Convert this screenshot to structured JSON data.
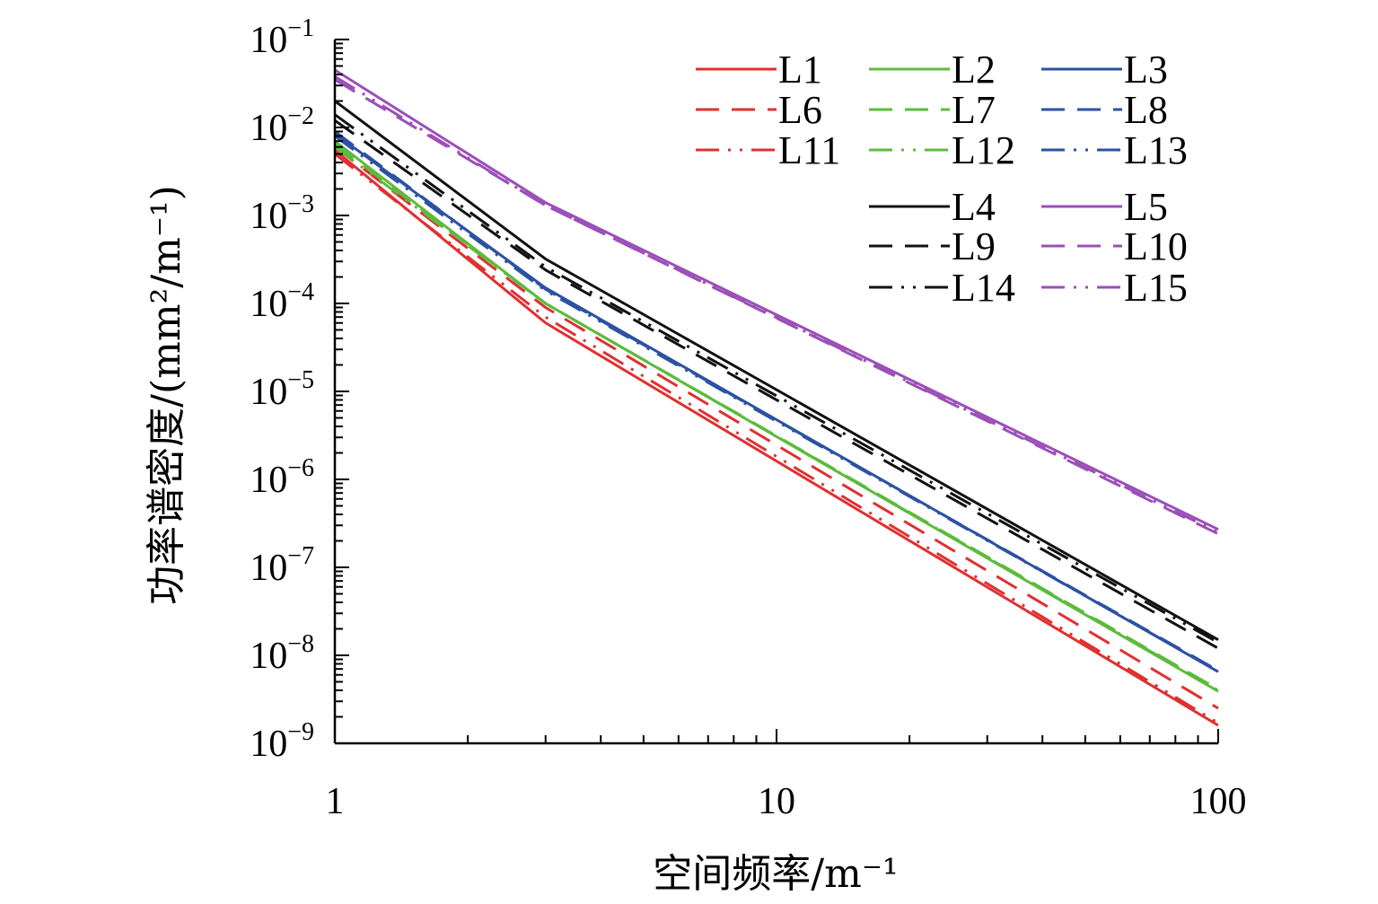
{
  "chart_data": {
    "type": "line",
    "xscale": "log",
    "yscale": "log",
    "xlim": [
      1,
      100
    ],
    "ylim": [
      1e-09,
      0.1
    ],
    "xlabel": "空间频率/m⁻¹",
    "ylabel": "功率谱密度/(mm²/m⁻¹)",
    "x_ticks": [
      {
        "value": 1,
        "label": "1"
      },
      {
        "value": 10,
        "label": "10"
      },
      {
        "value": 100,
        "label": "100"
      }
    ],
    "y_ticks": [
      {
        "value": 0.1,
        "base": "10",
        "exp": "−1"
      },
      {
        "value": 0.01,
        "base": "10",
        "exp": "−2"
      },
      {
        "value": 0.001,
        "base": "10",
        "exp": "−3"
      },
      {
        "value": 0.0001,
        "base": "10",
        "exp": "−4"
      },
      {
        "value": 1e-05,
        "base": "10",
        "exp": "−5"
      },
      {
        "value": 1e-06,
        "base": "10",
        "exp": "−6"
      },
      {
        "value": 1e-07,
        "base": "10",
        "exp": "−7"
      },
      {
        "value": 1e-08,
        "base": "10",
        "exp": "−8"
      },
      {
        "value": 1e-09,
        "base": "10",
        "exp": "−9"
      }
    ],
    "grid": false,
    "legend_position": "top-right",
    "series": [
      {
        "name": "L1",
        "color": "#e03030",
        "dash": "solid",
        "points": [
          [
            1,
            0.0055
          ],
          [
            3,
            6e-05
          ],
          [
            100,
            1.6e-09
          ]
        ]
      },
      {
        "name": "L2",
        "color": "#5cbb3c",
        "dash": "solid",
        "points": [
          [
            1,
            0.007
          ],
          [
            3,
            0.0001
          ],
          [
            100,
            3.9e-09
          ]
        ]
      },
      {
        "name": "L3",
        "color": "#2b52a3",
        "dash": "solid",
        "points": [
          [
            1,
            0.0085
          ],
          [
            3,
            0.00015
          ],
          [
            100,
            6.5e-09
          ]
        ]
      },
      {
        "name": "L6",
        "color": "#e03030",
        "dash": "dash",
        "points": [
          [
            1,
            0.006
          ],
          [
            3,
            9e-05
          ],
          [
            100,
            2.5e-09
          ]
        ]
      },
      {
        "name": "L7",
        "color": "#5cbb3c",
        "dash": "dash",
        "points": [
          [
            1,
            0.0065
          ],
          [
            3,
            0.0001
          ],
          [
            100,
            4.1e-09
          ]
        ]
      },
      {
        "name": "L8",
        "color": "#2b52a3",
        "dash": "dash",
        "points": [
          [
            1,
            0.009
          ],
          [
            3,
            0.000145
          ],
          [
            100,
            6.7e-09
          ]
        ]
      },
      {
        "name": "L11",
        "color": "#e03030",
        "dash": "dashdot",
        "points": [
          [
            1,
            0.005
          ],
          [
            3,
            7e-05
          ],
          [
            100,
            1.7e-09
          ]
        ]
      },
      {
        "name": "L12",
        "color": "#5cbb3c",
        "dash": "dashdot",
        "points": [
          [
            1,
            0.006
          ],
          [
            3,
            0.0001
          ],
          [
            100,
            4e-09
          ]
        ]
      },
      {
        "name": "L13",
        "color": "#2b52a3",
        "dash": "dashdot",
        "points": [
          [
            1,
            0.008
          ],
          [
            3,
            0.00014
          ],
          [
            100,
            6.6e-09
          ]
        ]
      },
      {
        "name": "L4",
        "color": "#111111",
        "dash": "solid",
        "points": [
          [
            1,
            0.02
          ],
          [
            3,
            0.00032
          ],
          [
            100,
            1.5e-08
          ]
        ]
      },
      {
        "name": "L9",
        "color": "#111111",
        "dash": "dash",
        "points": [
          [
            1,
            0.012
          ],
          [
            3,
            0.00024
          ],
          [
            100,
            1.2e-08
          ]
        ]
      },
      {
        "name": "L14",
        "color": "#111111",
        "dash": "dashdot",
        "points": [
          [
            1,
            0.014
          ],
          [
            3,
            0.00026
          ],
          [
            100,
            1.4e-08
          ]
        ]
      },
      {
        "name": "L5",
        "color": "#9b4fb8",
        "dash": "solid",
        "points": [
          [
            1,
            0.045
          ],
          [
            3,
            0.0014
          ],
          [
            100,
            2.7e-07
          ]
        ]
      },
      {
        "name": "L10",
        "color": "#9b4fb8",
        "dash": "dash",
        "points": [
          [
            1,
            0.035
          ],
          [
            3,
            0.0013
          ],
          [
            100,
            2.4e-07
          ]
        ]
      },
      {
        "name": "L15",
        "color": "#9b4fb8",
        "dash": "dashdot",
        "points": [
          [
            1,
            0.038
          ],
          [
            3,
            0.0013
          ],
          [
            100,
            2.5e-07
          ]
        ]
      }
    ]
  }
}
